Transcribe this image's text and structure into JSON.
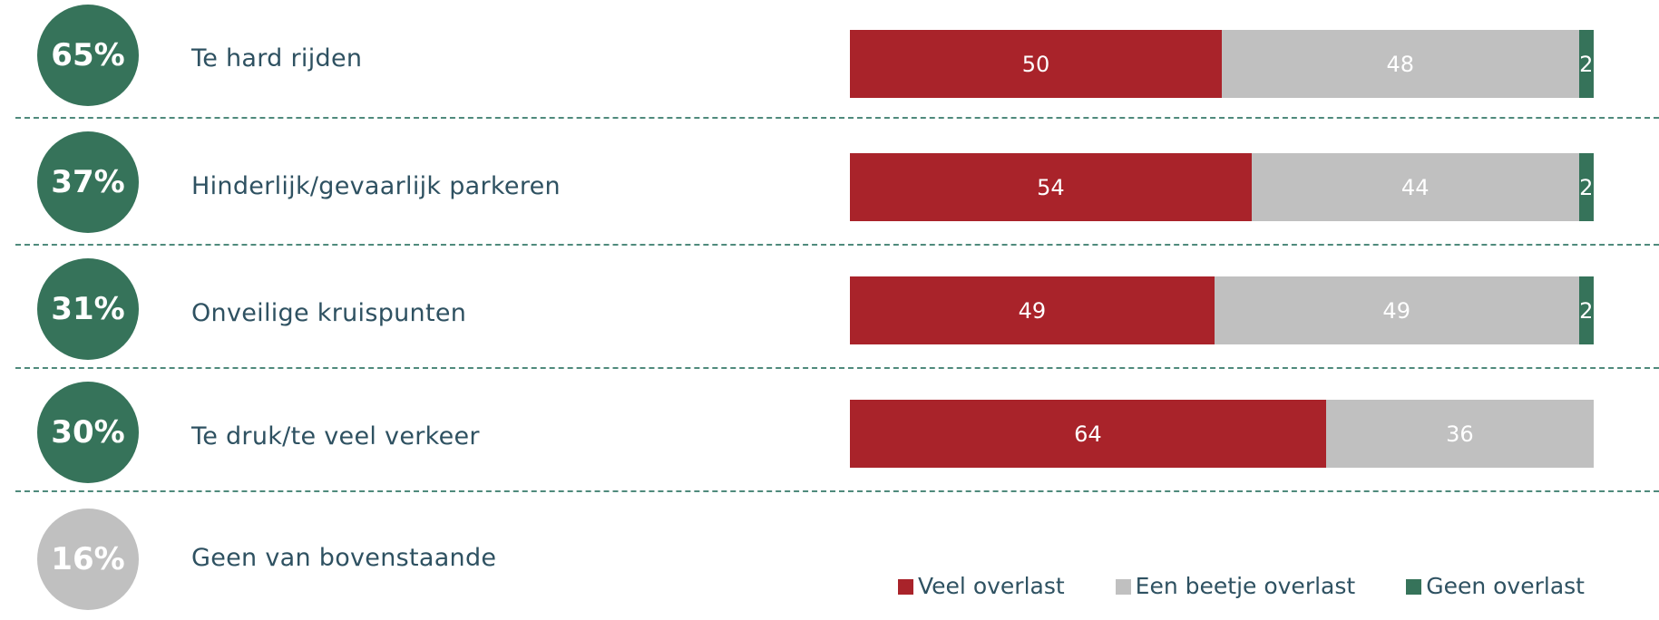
{
  "colors": {
    "veel": "#a9232a",
    "beetje": "#c0c0c0",
    "geen": "#36735a",
    "badge_green": "#36735a",
    "badge_grey": "#c0c0c0",
    "label_text": "#2e5161"
  },
  "legend": [
    {
      "label": "Veel overlast",
      "color": "#a9232a"
    },
    {
      "label": "Een beetje overlast",
      "color": "#c0c0c0"
    },
    {
      "label": "Geen overlast",
      "color": "#36735a"
    }
  ],
  "rows": [
    {
      "badge": "65%",
      "label": "Te hard rijden",
      "badge_color": "green"
    },
    {
      "badge": "37%",
      "label": "Hinderlijk/gevaarlijk parkeren",
      "badge_color": "green"
    },
    {
      "badge": "31%",
      "label": "Onveilige kruispunten",
      "badge_color": "green"
    },
    {
      "badge": "30%",
      "label": "Te druk/te veel verkeer",
      "badge_color": "green"
    },
    {
      "badge": "16%",
      "label": "Geen van bovenstaande",
      "badge_color": "grey"
    }
  ],
  "chart_data": {
    "type": "bar",
    "orientation": "horizontal",
    "stacked": true,
    "categories": [
      "Te hard rijden",
      "Hinderlijk/gevaarlijk parkeren",
      "Onveilige kruispunten",
      "Te druk/te veel verkeer"
    ],
    "series": [
      {
        "name": "Veel overlast",
        "values": [
          50,
          54,
          49,
          64
        ]
      },
      {
        "name": "Een beetje overlast",
        "values": [
          48,
          44,
          49,
          36
        ]
      },
      {
        "name": "Geen overlast",
        "values": [
          2,
          2,
          2,
          0
        ]
      }
    ],
    "xlim": [
      0,
      100
    ],
    "legend_position": "bottom"
  }
}
